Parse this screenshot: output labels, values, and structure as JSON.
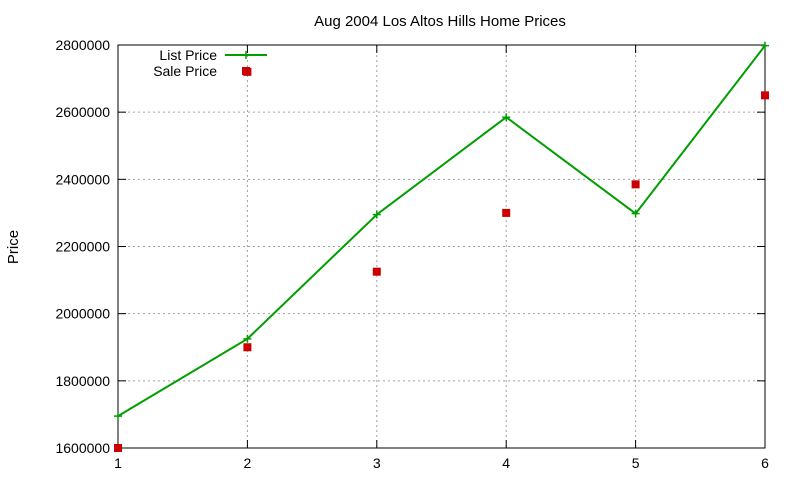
{
  "chart_data": {
    "type": "line",
    "title": "Aug 2004 Los Altos Hills Home Prices",
    "xlabel": "",
    "ylabel": "Price",
    "x": [
      1,
      2,
      3,
      4,
      5,
      6
    ],
    "xlim": [
      1,
      6
    ],
    "ylim": [
      1600000,
      2800000
    ],
    "xticks": [
      1,
      2,
      3,
      4,
      5,
      6
    ],
    "yticks": [
      1600000,
      1800000,
      2000000,
      2200000,
      2400000,
      2600000,
      2800000
    ],
    "grid": true,
    "legend_position": "top-left",
    "series": [
      {
        "name": "List Price",
        "style": "line-with-plus-markers",
        "color": "#009e00",
        "values": [
          1695000,
          1925000,
          2295000,
          2585000,
          2298000,
          2798000
        ]
      },
      {
        "name": "Sale Price",
        "style": "square-markers",
        "color": "#cc0000",
        "values": [
          1600000,
          1900000,
          2125000,
          2300000,
          2385000,
          2650000
        ]
      }
    ],
    "extra_points": [
      {
        "series": "Sale Price",
        "x": 2,
        "y": 2720000
      }
    ]
  }
}
